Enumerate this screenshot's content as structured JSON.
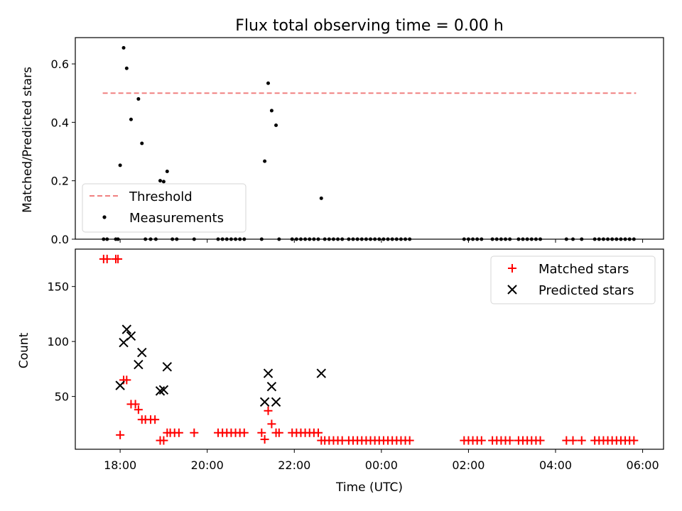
{
  "figure": {
    "title": "Flux total observing time = 0.00 h"
  },
  "chart_data": [
    {
      "type": "scatter",
      "ylabel": "Matched/Predicted stars",
      "ylim": [
        0,
        0.69
      ],
      "yticks": [
        "0.0",
        "0.2",
        "0.4",
        "0.6"
      ],
      "grid": false,
      "legend_position": "lower-left",
      "threshold": {
        "name": "Threshold",
        "value": 0.5,
        "x_range": [
          17.6,
          29.85
        ],
        "color": "#f08080"
      },
      "series": [
        {
          "name": "Measurements",
          "color": "#000000",
          "points": [
            [
              17.62,
              0
            ],
            [
              17.7,
              0
            ],
            [
              17.9,
              0
            ],
            [
              17.95,
              0
            ],
            [
              18.0,
              0.253
            ],
            [
              18.08,
              0.655
            ],
            [
              18.15,
              0.585
            ],
            [
              18.25,
              0.41
            ],
            [
              18.42,
              0.48
            ],
            [
              18.5,
              0.328
            ],
            [
              18.58,
              0
            ],
            [
              18.7,
              0
            ],
            [
              18.82,
              0
            ],
            [
              18.92,
              0.2
            ],
            [
              19.0,
              0.197
            ],
            [
              19.08,
              0.232
            ],
            [
              19.2,
              0
            ],
            [
              19.3,
              0
            ],
            [
              19.7,
              0
            ],
            [
              20.25,
              0
            ],
            [
              20.35,
              0
            ],
            [
              20.45,
              0
            ],
            [
              20.55,
              0
            ],
            [
              20.65,
              0
            ],
            [
              20.75,
              0
            ],
            [
              20.85,
              0
            ],
            [
              21.25,
              0
            ],
            [
              21.32,
              0.267
            ],
            [
              21.4,
              0.534
            ],
            [
              21.48,
              0.44
            ],
            [
              21.58,
              0.39
            ],
            [
              21.65,
              0
            ],
            [
              21.95,
              0
            ],
            [
              22.05,
              0
            ],
            [
              22.15,
              0
            ],
            [
              22.25,
              0
            ],
            [
              22.35,
              0
            ],
            [
              22.45,
              0
            ],
            [
              22.55,
              0
            ],
            [
              22.62,
              0.14
            ],
            [
              22.7,
              0
            ],
            [
              22.8,
              0
            ],
            [
              22.9,
              0
            ],
            [
              23.0,
              0
            ],
            [
              23.1,
              0
            ],
            [
              23.25,
              0
            ],
            [
              23.35,
              0
            ],
            [
              23.45,
              0
            ],
            [
              23.55,
              0
            ],
            [
              23.65,
              0
            ],
            [
              23.75,
              0
            ],
            [
              23.85,
              0
            ],
            [
              23.95,
              0
            ],
            [
              24.05,
              0
            ],
            [
              24.15,
              0
            ],
            [
              24.25,
              0
            ],
            [
              24.35,
              0
            ],
            [
              24.45,
              0
            ],
            [
              24.55,
              0
            ],
            [
              24.65,
              0
            ],
            [
              25.9,
              0
            ],
            [
              26.0,
              0
            ],
            [
              26.1,
              0
            ],
            [
              26.2,
              0
            ],
            [
              26.3,
              0
            ],
            [
              26.55,
              0
            ],
            [
              26.65,
              0
            ],
            [
              26.75,
              0
            ],
            [
              26.85,
              0
            ],
            [
              26.95,
              0
            ],
            [
              27.15,
              0
            ],
            [
              27.25,
              0
            ],
            [
              27.35,
              0
            ],
            [
              27.45,
              0
            ],
            [
              27.55,
              0
            ],
            [
              27.65,
              0
            ],
            [
              28.25,
              0
            ],
            [
              28.4,
              0
            ],
            [
              28.6,
              0
            ],
            [
              28.9,
              0
            ],
            [
              29.0,
              0
            ],
            [
              29.1,
              0
            ],
            [
              29.2,
              0
            ],
            [
              29.3,
              0
            ],
            [
              29.4,
              0
            ],
            [
              29.5,
              0
            ],
            [
              29.6,
              0
            ],
            [
              29.7,
              0
            ],
            [
              29.8,
              0
            ]
          ]
        }
      ]
    },
    {
      "type": "scatter",
      "xlabel": "Time (UTC)",
      "ylabel": "Count",
      "xlim": [
        16.97,
        30.48
      ],
      "ylim": [
        2,
        184
      ],
      "xticks": [
        {
          "value": 18,
          "label": "18:00"
        },
        {
          "value": 20,
          "label": "20:00"
        },
        {
          "value": 22,
          "label": "22:00"
        },
        {
          "value": 24,
          "label": "00:00"
        },
        {
          "value": 26,
          "label": "02:00"
        },
        {
          "value": 28,
          "label": "04:00"
        },
        {
          "value": 30,
          "label": "06:00"
        }
      ],
      "yticks": [
        "50",
        "100",
        "150"
      ],
      "grid": false,
      "legend_position": "upper-right",
      "series": [
        {
          "name": "Matched stars",
          "marker": "plus",
          "color": "#ff0000",
          "points": [
            [
              17.62,
              175
            ],
            [
              17.7,
              175
            ],
            [
              17.9,
              175
            ],
            [
              17.95,
              175
            ],
            [
              18.0,
              15
            ],
            [
              18.08,
              65
            ],
            [
              18.15,
              65
            ],
            [
              18.25,
              43
            ],
            [
              18.35,
              43
            ],
            [
              18.42,
              38
            ],
            [
              18.5,
              29
            ],
            [
              18.58,
              29
            ],
            [
              18.7,
              29
            ],
            [
              18.8,
              29
            ],
            [
              18.92,
              10
            ],
            [
              19.0,
              10
            ],
            [
              19.08,
              17
            ],
            [
              19.15,
              17
            ],
            [
              19.25,
              17
            ],
            [
              19.35,
              17
            ],
            [
              19.7,
              17
            ],
            [
              20.25,
              17
            ],
            [
              20.35,
              17
            ],
            [
              20.45,
              17
            ],
            [
              20.55,
              17
            ],
            [
              20.65,
              17
            ],
            [
              20.75,
              17
            ],
            [
              20.85,
              17
            ],
            [
              21.25,
              17
            ],
            [
              21.32,
              11
            ],
            [
              21.4,
              37
            ],
            [
              21.48,
              25
            ],
            [
              21.58,
              17
            ],
            [
              21.65,
              17
            ],
            [
              21.95,
              17
            ],
            [
              22.05,
              17
            ],
            [
              22.15,
              17
            ],
            [
              22.25,
              17
            ],
            [
              22.35,
              17
            ],
            [
              22.45,
              17
            ],
            [
              22.55,
              17
            ],
            [
              22.62,
              10
            ],
            [
              22.7,
              10
            ],
            [
              22.8,
              10
            ],
            [
              22.9,
              10
            ],
            [
              23.0,
              10
            ],
            [
              23.1,
              10
            ],
            [
              23.25,
              10
            ],
            [
              23.35,
              10
            ],
            [
              23.45,
              10
            ],
            [
              23.55,
              10
            ],
            [
              23.65,
              10
            ],
            [
              23.75,
              10
            ],
            [
              23.85,
              10
            ],
            [
              23.95,
              10
            ],
            [
              24.05,
              10
            ],
            [
              24.15,
              10
            ],
            [
              24.25,
              10
            ],
            [
              24.35,
              10
            ],
            [
              24.45,
              10
            ],
            [
              24.55,
              10
            ],
            [
              24.65,
              10
            ],
            [
              25.9,
              10
            ],
            [
              26.0,
              10
            ],
            [
              26.1,
              10
            ],
            [
              26.2,
              10
            ],
            [
              26.3,
              10
            ],
            [
              26.55,
              10
            ],
            [
              26.65,
              10
            ],
            [
              26.75,
              10
            ],
            [
              26.85,
              10
            ],
            [
              26.95,
              10
            ],
            [
              27.15,
              10
            ],
            [
              27.25,
              10
            ],
            [
              27.35,
              10
            ],
            [
              27.45,
              10
            ],
            [
              27.55,
              10
            ],
            [
              27.65,
              10
            ],
            [
              28.25,
              10
            ],
            [
              28.4,
              10
            ],
            [
              28.6,
              10
            ],
            [
              28.9,
              10
            ],
            [
              29.0,
              10
            ],
            [
              29.1,
              10
            ],
            [
              29.2,
              10
            ],
            [
              29.3,
              10
            ],
            [
              29.4,
              10
            ],
            [
              29.5,
              10
            ],
            [
              29.6,
              10
            ],
            [
              29.7,
              10
            ],
            [
              29.8,
              10
            ]
          ]
        },
        {
          "name": "Predicted stars",
          "marker": "x",
          "color": "#000000",
          "points": [
            [
              18.0,
              60
            ],
            [
              18.08,
              99
            ],
            [
              18.15,
              111
            ],
            [
              18.25,
              105
            ],
            [
              18.42,
              79
            ],
            [
              18.5,
              90
            ],
            [
              18.92,
              55
            ],
            [
              19.0,
              56
            ],
            [
              19.08,
              77
            ],
            [
              21.32,
              45
            ],
            [
              21.4,
              71
            ],
            [
              21.48,
              59
            ],
            [
              21.58,
              45
            ],
            [
              22.62,
              71
            ]
          ]
        }
      ]
    }
  ]
}
